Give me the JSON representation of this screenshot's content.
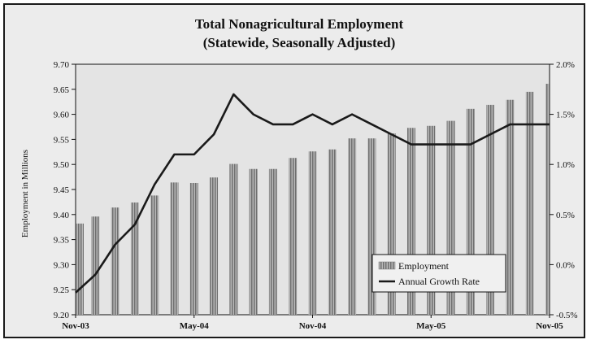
{
  "chart_data": {
    "type": "bar+line",
    "title": "Total Nonagricultural Employment",
    "subtitle": "(Statewide, Seasonally Adjusted)",
    "ylabel": "Employment in Millions",
    "ylabel_right": "",
    "ylim": [
      9.2,
      9.7
    ],
    "y2lim": [
      -0.5,
      2.0
    ],
    "yticks": [
      "9.20",
      "9.25",
      "9.30",
      "9.35",
      "9.40",
      "9.45",
      "9.50",
      "9.55",
      "9.60",
      "9.65",
      "9.70"
    ],
    "y2ticks": [
      "-0.5%",
      "0.0%",
      "0.5%",
      "1.0%",
      "1.5%",
      "2.0%"
    ],
    "xtick_labels": [
      {
        "label": "Nov-03",
        "index": 0
      },
      {
        "label": "May-04",
        "index": 6
      },
      {
        "label": "Nov-04",
        "index": 12
      },
      {
        "label": "May-05",
        "index": 18
      },
      {
        "label": "Nov-05",
        "index": 24
      }
    ],
    "categories": [
      "Nov-03",
      "Dec-03",
      "Jan-04",
      "Feb-04",
      "Mar-04",
      "Apr-04",
      "May-04",
      "Jun-04",
      "Jul-04",
      "Aug-04",
      "Sep-04",
      "Oct-04",
      "Nov-04",
      "Dec-04",
      "Jan-05",
      "Feb-05",
      "Mar-05",
      "Apr-05",
      "May-05",
      "Jun-05",
      "Jul-05",
      "Aug-05",
      "Sep-05",
      "Oct-05",
      "Nov-05"
    ],
    "series": [
      {
        "name": "Employment",
        "type": "bar",
        "axis": "left",
        "color": "#8a8a8a",
        "values": [
          9.382,
          9.396,
          9.414,
          9.424,
          9.438,
          9.464,
          9.463,
          9.474,
          9.501,
          9.491,
          9.491,
          9.513,
          9.526,
          9.53,
          9.552,
          9.552,
          9.562,
          9.573,
          9.577,
          9.587,
          9.611,
          9.619,
          9.629,
          9.645,
          9.661
        ]
      },
      {
        "name": "Annual Growth Rate",
        "type": "line",
        "axis": "right",
        "color": "#1a1a1a",
        "values": [
          -0.28,
          -0.1,
          0.2,
          0.4,
          0.8,
          1.1,
          1.1,
          1.3,
          1.7,
          1.5,
          1.4,
          1.4,
          1.5,
          1.4,
          1.5,
          1.4,
          1.3,
          1.2,
          1.2,
          1.2,
          1.2,
          1.3,
          1.4,
          1.4,
          1.4
        ]
      }
    ],
    "legend": {
      "position": "bottom-right",
      "entries": [
        "Employment",
        "Annual Growth Rate"
      ]
    },
    "grid": false
  }
}
